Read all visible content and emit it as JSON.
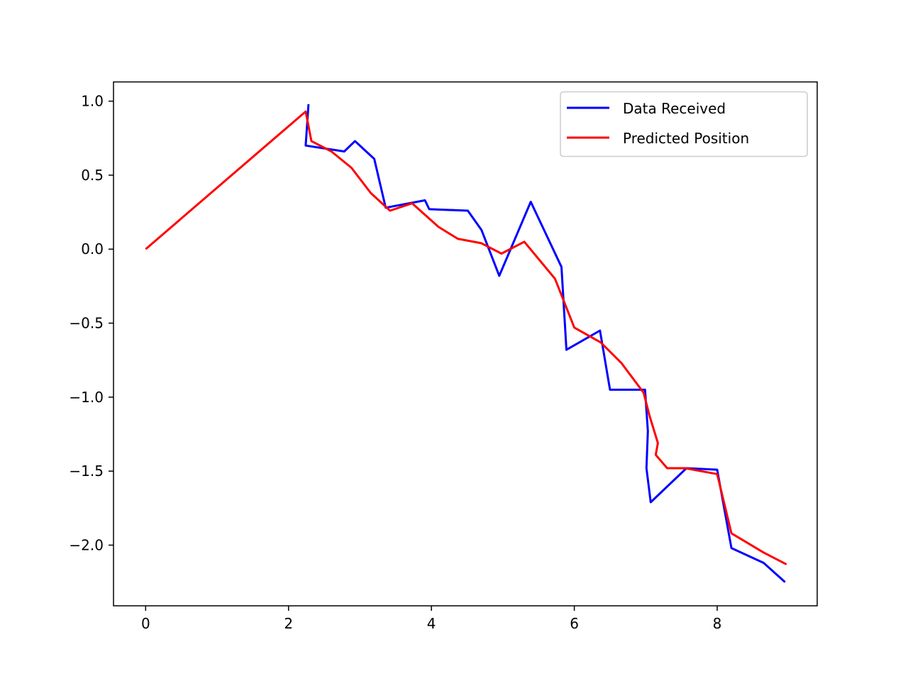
{
  "chart_data": {
    "type": "line",
    "title": "",
    "xlabel": "",
    "ylabel": "",
    "xlim": [
      -0.45,
      9.4
    ],
    "ylim": [
      -2.41,
      1.13
    ],
    "x_ticks": [
      0,
      2,
      4,
      6,
      8
    ],
    "x_tick_labels": [
      "0",
      "2",
      "4",
      "6",
      "8"
    ],
    "y_ticks": [
      1.0,
      0.5,
      0.0,
      -0.5,
      -1.0,
      -1.5,
      -2.0
    ],
    "y_tick_labels": [
      "1.0",
      "0.5",
      "0.0",
      "−0.5",
      "−1.0",
      "−1.5",
      "−2.0"
    ],
    "grid": false,
    "legend_position": "top-right",
    "series": [
      {
        "name": "Data Received",
        "color": "#0000ff",
        "x": [
          2.28,
          2.24,
          2.78,
          2.93,
          3.2,
          3.36,
          3.91,
          3.97,
          4.51,
          4.7,
          4.95,
          5.39,
          5.82,
          5.89,
          6.36,
          6.5,
          6.99,
          7.03,
          7.01,
          7.07,
          7.57,
          8.0,
          8.2,
          8.65,
          8.95
        ],
        "y": [
          0.98,
          0.7,
          0.66,
          0.73,
          0.61,
          0.28,
          0.33,
          0.27,
          0.26,
          0.13,
          -0.18,
          0.32,
          -0.12,
          -0.68,
          -0.55,
          -0.95,
          -0.95,
          -1.23,
          -1.48,
          -1.71,
          -1.48,
          -1.49,
          -2.02,
          -2.12,
          -2.25
        ]
      },
      {
        "name": "Predicted Position",
        "color": "#ff0000",
        "x": [
          0.0,
          2.24,
          2.32,
          2.6,
          2.88,
          3.15,
          3.42,
          3.73,
          4.1,
          4.37,
          4.7,
          4.98,
          5.3,
          5.73,
          6.0,
          6.37,
          6.66,
          6.97,
          7.05,
          7.17,
          7.14,
          7.3,
          7.55,
          8.0,
          8.2,
          8.65,
          8.97
        ],
        "y": [
          0.0,
          0.93,
          0.73,
          0.66,
          0.55,
          0.38,
          0.26,
          0.31,
          0.15,
          0.07,
          0.04,
          -0.03,
          0.05,
          -0.2,
          -0.53,
          -0.63,
          -0.77,
          -0.97,
          -1.12,
          -1.31,
          -1.39,
          -1.48,
          -1.48,
          -1.52,
          -1.92,
          -2.05,
          -2.13
        ]
      }
    ]
  }
}
